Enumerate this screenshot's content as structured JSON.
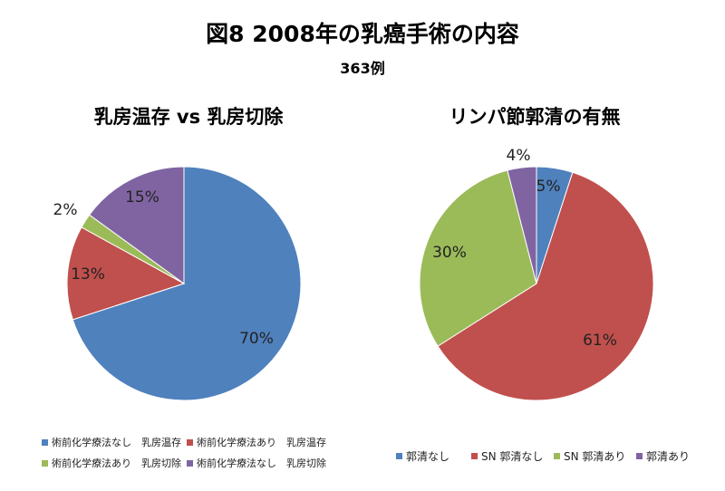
{
  "title": "図8  2008年の乳癌手術の内容",
  "subtitle": "363例",
  "chart_data": [
    {
      "type": "pie",
      "title": "乳房温存 vs 乳房切除",
      "series": [
        {
          "name": "術前化学療法なし　乳房温存",
          "value": 70,
          "label": "70%",
          "color": "#4f81bd"
        },
        {
          "name": "術前化学療法あり　乳房温存",
          "value": 13,
          "label": "13%",
          "color": "#c0504d"
        },
        {
          "name": "術前化学療法あり　乳房切除",
          "value": 2,
          "label": "2%",
          "color": "#9bbb59"
        },
        {
          "name": "術前化学療法なし　乳房切除",
          "value": 15,
          "label": "15%",
          "color": "#8064a2"
        }
      ],
      "legend": "bottom"
    },
    {
      "type": "pie",
      "title": "リンパ節郭清の有無",
      "series": [
        {
          "name": "郭清なし",
          "value": 5,
          "label": "5%",
          "color": "#4f81bd"
        },
        {
          "name": "SN 郭清なし",
          "value": 61,
          "label": "61%",
          "color": "#c0504d"
        },
        {
          "name": "SN 郭清あり",
          "value": 30,
          "label": "30%",
          "color": "#9bbb59"
        },
        {
          "name": "郭清あり",
          "value": 4,
          "label": "4%",
          "color": "#8064a2"
        }
      ],
      "legend": "bottom"
    }
  ]
}
